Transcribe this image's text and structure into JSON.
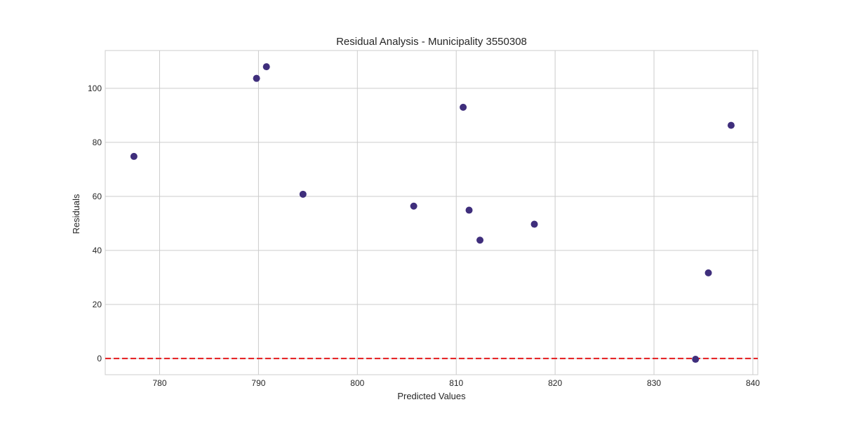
{
  "chart_data": {
    "type": "scatter",
    "title": "Residual Analysis - Municipality 3550308",
    "xlabel": "Predicted Values",
    "ylabel": "Residuals",
    "xlim": [
      774.5,
      840.5
    ],
    "ylim": [
      -6,
      114
    ],
    "xticks": [
      780,
      790,
      800,
      810,
      820,
      830,
      840
    ],
    "yticks": [
      0,
      20,
      40,
      60,
      80,
      100
    ],
    "grid": true,
    "reference_line": {
      "y": 0,
      "color": "#e41a1c",
      "style": "dashed"
    },
    "point_color": "#3f2e7c",
    "x": [
      777.4,
      789.8,
      790.8,
      794.5,
      805.7,
      810.7,
      811.3,
      812.4,
      817.9,
      834.2,
      835.5,
      837.8
    ],
    "y": [
      74.8,
      103.7,
      108.0,
      60.8,
      56.4,
      93.0,
      54.9,
      43.8,
      49.7,
      -0.3,
      31.7,
      86.3
    ]
  }
}
